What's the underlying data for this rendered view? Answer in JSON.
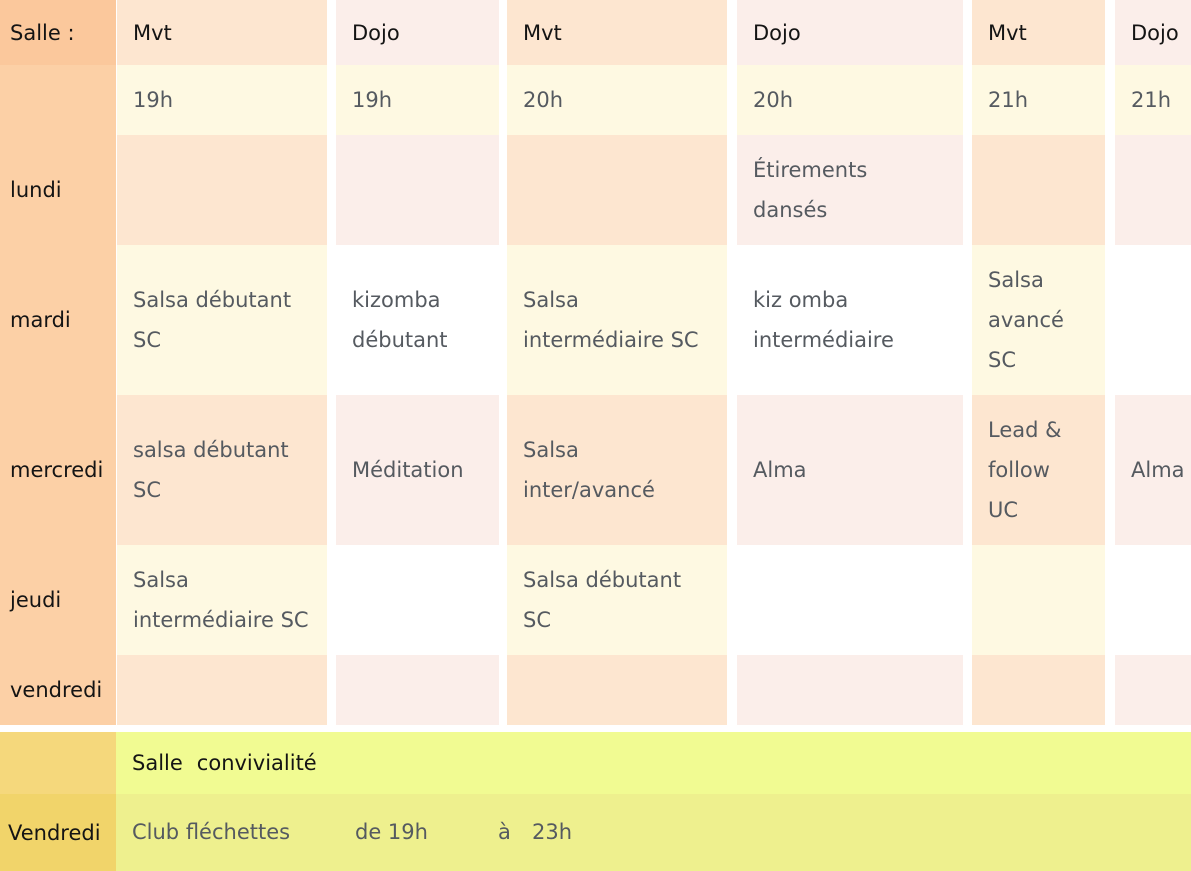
{
  "schedule": {
    "header_label": "Salle :",
    "columns": [
      {
        "room": "Mvt",
        "time": "19h"
      },
      {
        "room": "Dojo",
        "time": "19h"
      },
      {
        "room": "Mvt",
        "time": "20h"
      },
      {
        "room": "Dojo",
        "time": "20h"
      },
      {
        "room": "Mvt",
        "time": "21h"
      },
      {
        "room": "Dojo",
        "time": "21h"
      }
    ],
    "days": [
      {
        "label": "lundi",
        "cells": [
          "",
          "",
          "",
          "Étirements\ndansés",
          "",
          ""
        ]
      },
      {
        "label": "mardi",
        "cells": [
          "Salsa débutant\nSC",
          "kizomba\ndébutant",
          "Salsa\nintermédiaire SC",
          "kiz omba\nintermédiaire",
          "Salsa\navancé\nSC",
          ""
        ]
      },
      {
        "label": "mercredi",
        "cells": [
          "salsa débutant\nSC",
          "Méditation",
          "Salsa\ninter/avancé",
          "Alma",
          "Lead &\nfollow\nUC",
          "Alma"
        ]
      },
      {
        "label": "jeudi",
        "cells": [
          "Salsa\nintermédiaire SC",
          "",
          "Salsa débutant\nSC",
          "",
          "",
          ""
        ]
      },
      {
        "label": "vendredi",
        "cells": [
          "",
          "",
          "",
          "",
          "",
          ""
        ]
      }
    ]
  },
  "conviviality": {
    "room_label": "Salle",
    "room_name": "convivialité",
    "day": "Vendredi",
    "activity": "Club fléchettes",
    "from": "de 19h",
    "to_word": "à",
    "to_time": "23h"
  }
}
